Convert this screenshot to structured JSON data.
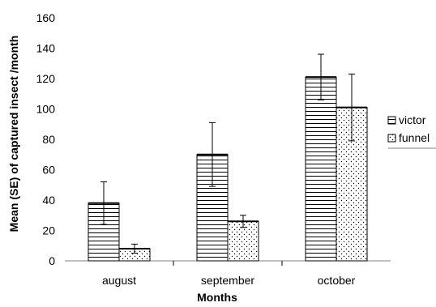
{
  "chart_data": {
    "type": "bar",
    "categories": [
      "august",
      "september",
      "october"
    ],
    "series": [
      {
        "name": "victor",
        "values": [
          38,
          70,
          121
        ],
        "se": [
          14,
          21,
          15
        ],
        "fill": "horizontal-lines"
      },
      {
        "name": "funnel",
        "values": [
          8,
          26,
          101
        ],
        "se": [
          3,
          4,
          22
        ],
        "fill": "dots"
      }
    ],
    "xlabel": "Months",
    "ylabel": "Mean  (SE) of captured insect /month",
    "ylim": [
      0,
      160
    ],
    "yticks": [
      0,
      20,
      40,
      60,
      80,
      100,
      120,
      140,
      160
    ],
    "grid": false,
    "legend_position": "right"
  }
}
